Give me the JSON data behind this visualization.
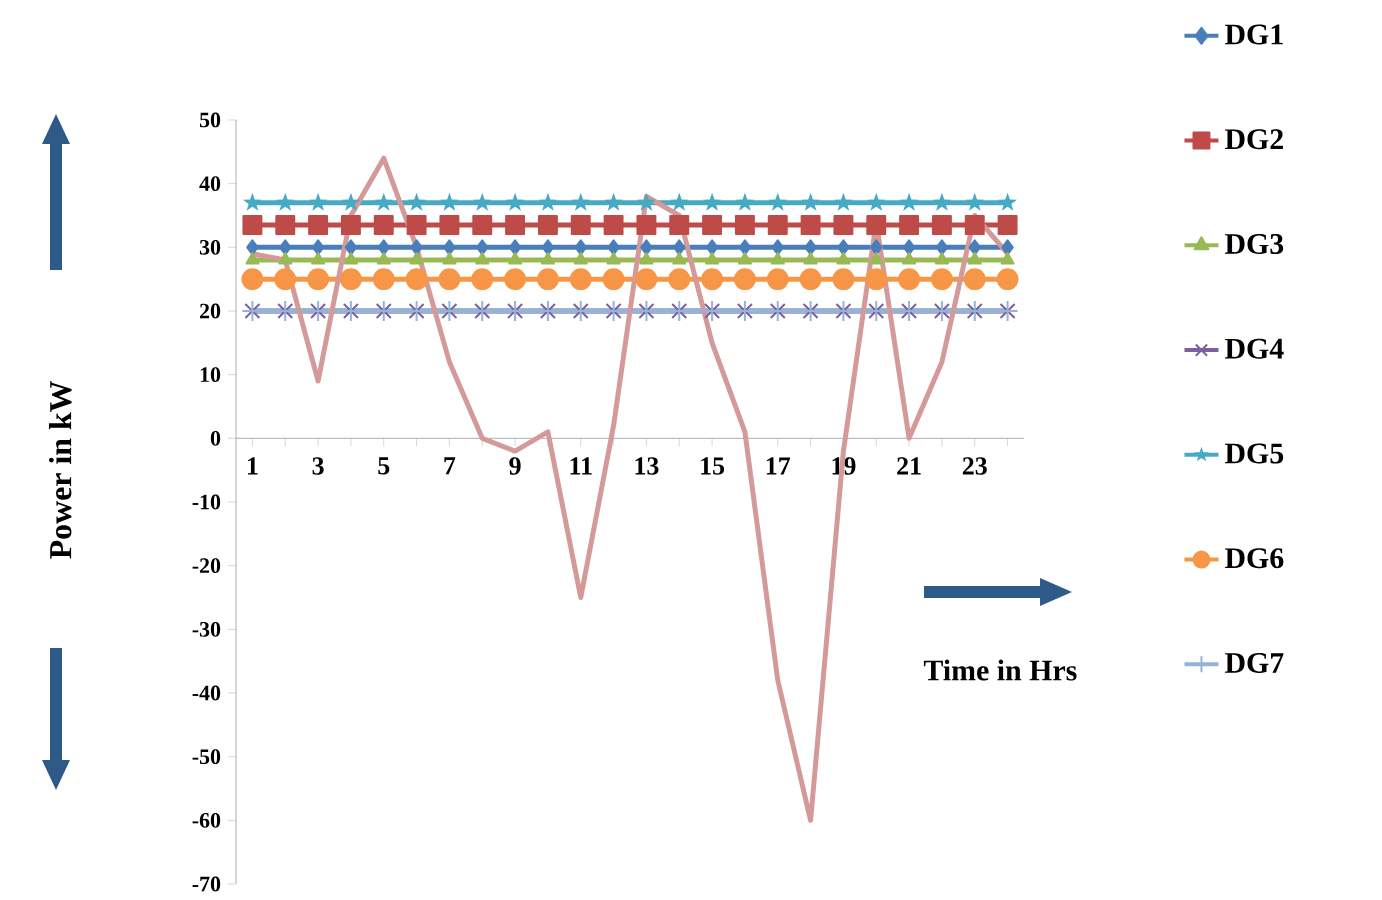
{
  "chart_data": {
    "type": "line",
    "xlabel": "Time in Hrs",
    "ylabel": "Power in kW",
    "categories": [
      "1",
      null,
      "3",
      null,
      "5",
      null,
      "7",
      null,
      "9",
      null,
      "11",
      null,
      "13",
      null,
      "15",
      null,
      "17",
      null,
      "19",
      null,
      "21",
      null,
      "23",
      null
    ],
    "ylim": [
      -70,
      50
    ],
    "yticks": [
      -70,
      -60,
      -50,
      -40,
      -30,
      -20,
      -10,
      0,
      10,
      20,
      30,
      40,
      50
    ],
    "legend": "right",
    "grid": false,
    "series": [
      {
        "name": "DG1",
        "color": "#4a7ebb",
        "marker": "diamond",
        "values": [
          30,
          30,
          30,
          30,
          30,
          30,
          30,
          30,
          30,
          30,
          30,
          30,
          30,
          30,
          30,
          30,
          30,
          30,
          30,
          30,
          30,
          30,
          30,
          30
        ]
      },
      {
        "name": "DG2",
        "color": "#be4b48",
        "marker": "square",
        "values": [
          33.5,
          33.5,
          33.5,
          33.5,
          33.5,
          33.5,
          33.5,
          33.5,
          33.5,
          33.5,
          33.5,
          33.5,
          33.5,
          33.5,
          33.5,
          33.5,
          33.5,
          33.5,
          33.5,
          33.5,
          33.5,
          33.5,
          33.5,
          33.5
        ]
      },
      {
        "name": "DG3",
        "color": "#98b954",
        "marker": "triangle",
        "values": [
          28,
          28,
          28,
          28,
          28,
          28,
          28,
          28,
          28,
          28,
          28,
          28,
          28,
          28,
          28,
          28,
          28,
          28,
          28,
          28,
          28,
          28,
          28,
          28
        ]
      },
      {
        "name": "DG4",
        "color": "#7d60a0",
        "marker": "cross",
        "values": [
          20,
          20,
          20,
          20,
          20,
          20,
          20,
          20,
          20,
          20,
          20,
          20,
          20,
          20,
          20,
          20,
          20,
          20,
          20,
          20,
          20,
          20,
          20,
          20
        ]
      },
      {
        "name": "DG5",
        "color": "#46aac5",
        "marker": "star",
        "values": [
          37,
          37,
          37,
          37,
          37,
          37,
          37,
          37,
          37,
          37,
          37,
          37,
          37,
          37,
          37,
          37,
          37,
          37,
          37,
          37,
          37,
          37,
          37,
          37
        ]
      },
      {
        "name": "DG6",
        "color": "#f79646",
        "marker": "circle",
        "values": [
          25,
          25,
          25,
          25,
          25,
          25,
          25,
          25,
          25,
          25,
          25,
          25,
          25,
          25,
          25,
          25,
          25,
          25,
          25,
          25,
          25,
          25,
          25,
          25
        ]
      },
      {
        "name": "DG7",
        "color": "#95b3d7",
        "marker": "plus",
        "values": [
          20,
          20,
          20,
          20,
          20,
          20,
          20,
          20,
          20,
          20,
          20,
          20,
          20,
          20,
          20,
          20,
          20,
          20,
          20,
          20,
          20,
          20,
          20,
          20
        ]
      },
      {
        "color": "#d49a9a",
        "marker": "none",
        "values": [
          29,
          28,
          9,
          35,
          44,
          30,
          12,
          0,
          -2,
          1,
          -25,
          2,
          38,
          35,
          15,
          1,
          -38,
          -60,
          -2,
          34,
          0,
          12,
          35,
          29
        ]
      }
    ]
  }
}
